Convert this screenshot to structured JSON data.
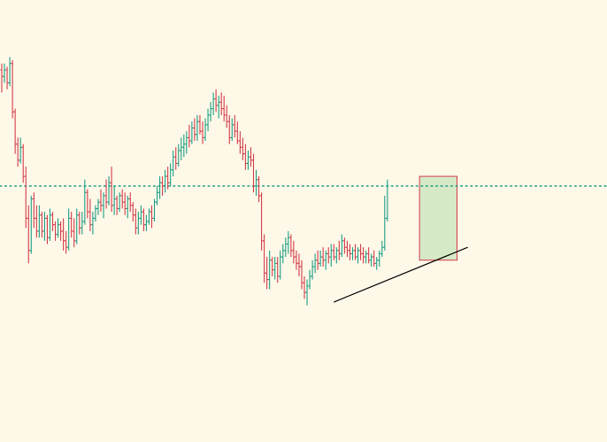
{
  "colors": {
    "background": "#fef8e8",
    "up": "#1b9e85",
    "down": "#d23c4a",
    "level_line": "#1b9e85",
    "trendline": "#000000",
    "box_fill": "#cfe6c0",
    "box_stroke": "#d23c4a"
  },
  "chart_data": {
    "type": "ohlc",
    "xlabel": "",
    "ylabel": "",
    "grid": false,
    "legend": "none",
    "xlim": [
      0,
      226
    ],
    "ylim": [
      0,
      100
    ],
    "candles": [
      {
        "x": 0,
        "o": 86,
        "h": 88,
        "l": 79,
        "c": 84
      },
      {
        "x": 1,
        "o": 84,
        "h": 88,
        "l": 82,
        "c": 86
      },
      {
        "x": 2,
        "o": 86,
        "h": 87,
        "l": 80,
        "c": 82
      },
      {
        "x": 3,
        "o": 82,
        "h": 90,
        "l": 81,
        "c": 88
      },
      {
        "x": 4,
        "o": 88,
        "h": 89,
        "l": 71,
        "c": 73
      },
      {
        "x": 5,
        "o": 73,
        "h": 74,
        "l": 60,
        "c": 63
      },
      {
        "x": 6,
        "o": 63,
        "h": 65,
        "l": 56,
        "c": 58
      },
      {
        "x": 7,
        "o": 58,
        "h": 65,
        "l": 57,
        "c": 62
      },
      {
        "x": 8,
        "o": 62,
        "h": 63,
        "l": 51,
        "c": 53
      },
      {
        "x": 9,
        "o": 53,
        "h": 56,
        "l": 37,
        "c": 40
      },
      {
        "x": 10,
        "o": 40,
        "h": 44,
        "l": 26,
        "c": 30
      },
      {
        "x": 11,
        "o": 30,
        "h": 47,
        "l": 29,
        "c": 46
      },
      {
        "x": 12,
        "o": 46,
        "h": 48,
        "l": 37,
        "c": 40
      },
      {
        "x": 13,
        "o": 40,
        "h": 44,
        "l": 34,
        "c": 36
      },
      {
        "x": 14,
        "o": 36,
        "h": 44,
        "l": 34,
        "c": 41
      },
      {
        "x": 15,
        "o": 41,
        "h": 42,
        "l": 34,
        "c": 36
      },
      {
        "x": 16,
        "o": 36,
        "h": 42,
        "l": 33,
        "c": 40
      },
      {
        "x": 17,
        "o": 40,
        "h": 41,
        "l": 32,
        "c": 34
      },
      {
        "x": 18,
        "o": 34,
        "h": 43,
        "l": 33,
        "c": 41
      },
      {
        "x": 19,
        "o": 41,
        "h": 42,
        "l": 36,
        "c": 38
      },
      {
        "x": 20,
        "o": 38,
        "h": 39,
        "l": 33,
        "c": 35
      },
      {
        "x": 21,
        "o": 35,
        "h": 40,
        "l": 34,
        "c": 38
      },
      {
        "x": 22,
        "o": 38,
        "h": 39,
        "l": 33,
        "c": 36
      },
      {
        "x": 23,
        "o": 36,
        "h": 40,
        "l": 30,
        "c": 33
      },
      {
        "x": 24,
        "o": 33,
        "h": 36,
        "l": 29,
        "c": 31
      },
      {
        "x": 25,
        "o": 31,
        "h": 43,
        "l": 30,
        "c": 40
      },
      {
        "x": 26,
        "o": 40,
        "h": 42,
        "l": 34,
        "c": 36
      },
      {
        "x": 27,
        "o": 36,
        "h": 40,
        "l": 31,
        "c": 33
      },
      {
        "x": 28,
        "o": 33,
        "h": 43,
        "l": 32,
        "c": 41
      },
      {
        "x": 29,
        "o": 41,
        "h": 42,
        "l": 35,
        "c": 37
      },
      {
        "x": 30,
        "o": 37,
        "h": 42,
        "l": 35,
        "c": 39
      },
      {
        "x": 31,
        "o": 39,
        "h": 52,
        "l": 38,
        "c": 48
      },
      {
        "x": 32,
        "o": 48,
        "h": 49,
        "l": 40,
        "c": 42
      },
      {
        "x": 33,
        "o": 42,
        "h": 46,
        "l": 36,
        "c": 38
      },
      {
        "x": 34,
        "o": 38,
        "h": 42,
        "l": 35,
        "c": 40
      },
      {
        "x": 35,
        "o": 40,
        "h": 44,
        "l": 39,
        "c": 43
      },
      {
        "x": 36,
        "o": 43,
        "h": 46,
        "l": 41,
        "c": 45
      },
      {
        "x": 37,
        "o": 45,
        "h": 49,
        "l": 42,
        "c": 44
      },
      {
        "x": 38,
        "o": 44,
        "h": 48,
        "l": 40,
        "c": 47
      },
      {
        "x": 39,
        "o": 47,
        "h": 52,
        "l": 43,
        "c": 45
      },
      {
        "x": 40,
        "o": 45,
        "h": 53,
        "l": 44,
        "c": 51
      },
      {
        "x": 41,
        "o": 51,
        "h": 56,
        "l": 42,
        "c": 44
      },
      {
        "x": 42,
        "o": 44,
        "h": 50,
        "l": 41,
        "c": 46
      },
      {
        "x": 43,
        "o": 46,
        "h": 47,
        "l": 41,
        "c": 43
      },
      {
        "x": 44,
        "o": 43,
        "h": 48,
        "l": 42,
        "c": 47
      },
      {
        "x": 45,
        "o": 47,
        "h": 49,
        "l": 43,
        "c": 45
      },
      {
        "x": 46,
        "o": 45,
        "h": 48,
        "l": 41,
        "c": 43
      },
      {
        "x": 47,
        "o": 43,
        "h": 47,
        "l": 40,
        "c": 46
      },
      {
        "x": 48,
        "o": 46,
        "h": 48,
        "l": 42,
        "c": 44
      },
      {
        "x": 49,
        "o": 44,
        "h": 45,
        "l": 39,
        "c": 41
      },
      {
        "x": 50,
        "o": 41,
        "h": 43,
        "l": 35,
        "c": 37
      },
      {
        "x": 51,
        "o": 37,
        "h": 42,
        "l": 35,
        "c": 40
      },
      {
        "x": 52,
        "o": 40,
        "h": 44,
        "l": 38,
        "c": 42
      },
      {
        "x": 53,
        "o": 42,
        "h": 43,
        "l": 36,
        "c": 38
      },
      {
        "x": 54,
        "o": 38,
        "h": 41,
        "l": 36,
        "c": 39
      },
      {
        "x": 55,
        "o": 39,
        "h": 43,
        "l": 38,
        "c": 42
      },
      {
        "x": 56,
        "o": 42,
        "h": 44,
        "l": 37,
        "c": 40
      },
      {
        "x": 57,
        "o": 40,
        "h": 46,
        "l": 39,
        "c": 45
      },
      {
        "x": 58,
        "o": 45,
        "h": 50,
        "l": 44,
        "c": 48
      },
      {
        "x": 59,
        "o": 48,
        "h": 53,
        "l": 46,
        "c": 51
      },
      {
        "x": 60,
        "o": 51,
        "h": 53,
        "l": 47,
        "c": 50
      },
      {
        "x": 61,
        "o": 50,
        "h": 55,
        "l": 48,
        "c": 53
      },
      {
        "x": 62,
        "o": 53,
        "h": 56,
        "l": 49,
        "c": 51
      },
      {
        "x": 63,
        "o": 51,
        "h": 57,
        "l": 50,
        "c": 55
      },
      {
        "x": 64,
        "o": 55,
        "h": 61,
        "l": 53,
        "c": 59
      },
      {
        "x": 65,
        "o": 59,
        "h": 62,
        "l": 55,
        "c": 57
      },
      {
        "x": 66,
        "o": 57,
        "h": 63,
        "l": 56,
        "c": 61
      },
      {
        "x": 67,
        "o": 61,
        "h": 65,
        "l": 58,
        "c": 62
      },
      {
        "x": 68,
        "o": 62,
        "h": 66,
        "l": 59,
        "c": 63
      },
      {
        "x": 69,
        "o": 63,
        "h": 67,
        "l": 60,
        "c": 65
      },
      {
        "x": 70,
        "o": 65,
        "h": 69,
        "l": 62,
        "c": 64
      },
      {
        "x": 71,
        "o": 64,
        "h": 70,
        "l": 63,
        "c": 68
      },
      {
        "x": 72,
        "o": 68,
        "h": 71,
        "l": 64,
        "c": 66
      },
      {
        "x": 73,
        "o": 66,
        "h": 72,
        "l": 64,
        "c": 70
      },
      {
        "x": 74,
        "o": 70,
        "h": 72,
        "l": 66,
        "c": 67
      },
      {
        "x": 75,
        "o": 67,
        "h": 70,
        "l": 63,
        "c": 65
      },
      {
        "x": 76,
        "o": 65,
        "h": 71,
        "l": 64,
        "c": 69
      },
      {
        "x": 77,
        "o": 69,
        "h": 74,
        "l": 67,
        "c": 72
      },
      {
        "x": 78,
        "o": 72,
        "h": 76,
        "l": 70,
        "c": 74
      },
      {
        "x": 79,
        "o": 74,
        "h": 79,
        "l": 72,
        "c": 77
      },
      {
        "x": 80,
        "o": 77,
        "h": 80,
        "l": 73,
        "c": 75
      },
      {
        "x": 81,
        "o": 75,
        "h": 78,
        "l": 71,
        "c": 76
      },
      {
        "x": 82,
        "o": 76,
        "h": 79,
        "l": 72,
        "c": 74
      },
      {
        "x": 83,
        "o": 74,
        "h": 78,
        "l": 70,
        "c": 72
      },
      {
        "x": 84,
        "o": 72,
        "h": 75,
        "l": 68,
        "c": 70
      },
      {
        "x": 85,
        "o": 70,
        "h": 72,
        "l": 63,
        "c": 65
      },
      {
        "x": 86,
        "o": 65,
        "h": 71,
        "l": 64,
        "c": 69
      },
      {
        "x": 87,
        "o": 69,
        "h": 72,
        "l": 65,
        "c": 67
      },
      {
        "x": 88,
        "o": 67,
        "h": 70,
        "l": 63,
        "c": 64
      },
      {
        "x": 89,
        "o": 64,
        "h": 67,
        "l": 60,
        "c": 62
      },
      {
        "x": 90,
        "o": 62,
        "h": 65,
        "l": 58,
        "c": 60
      },
      {
        "x": 91,
        "o": 60,
        "h": 63,
        "l": 55,
        "c": 57
      },
      {
        "x": 92,
        "o": 57,
        "h": 61,
        "l": 55,
        "c": 59
      },
      {
        "x": 93,
        "o": 59,
        "h": 62,
        "l": 56,
        "c": 58
      },
      {
        "x": 94,
        "o": 58,
        "h": 60,
        "l": 48,
        "c": 50
      },
      {
        "x": 95,
        "o": 50,
        "h": 55,
        "l": 47,
        "c": 52
      },
      {
        "x": 96,
        "o": 52,
        "h": 53,
        "l": 45,
        "c": 47
      },
      {
        "x": 97,
        "o": 47,
        "h": 48,
        "l": 30,
        "c": 33
      },
      {
        "x": 98,
        "o": 33,
        "h": 35,
        "l": 20,
        "c": 23
      },
      {
        "x": 99,
        "o": 23,
        "h": 28,
        "l": 18,
        "c": 21
      },
      {
        "x": 100,
        "o": 21,
        "h": 30,
        "l": 18,
        "c": 27
      },
      {
        "x": 101,
        "o": 27,
        "h": 28,
        "l": 22,
        "c": 24
      },
      {
        "x": 102,
        "o": 24,
        "h": 28,
        "l": 21,
        "c": 26
      },
      {
        "x": 103,
        "o": 26,
        "h": 28,
        "l": 20,
        "c": 22
      },
      {
        "x": 104,
        "o": 22,
        "h": 30,
        "l": 21,
        "c": 28
      },
      {
        "x": 105,
        "o": 28,
        "h": 32,
        "l": 26,
        "c": 30
      },
      {
        "x": 106,
        "o": 30,
        "h": 34,
        "l": 28,
        "c": 32
      },
      {
        "x": 107,
        "o": 32,
        "h": 36,
        "l": 29,
        "c": 34
      },
      {
        "x": 108,
        "o": 34,
        "h": 35,
        "l": 28,
        "c": 30
      },
      {
        "x": 109,
        "o": 30,
        "h": 33,
        "l": 26,
        "c": 28
      },
      {
        "x": 110,
        "o": 28,
        "h": 30,
        "l": 24,
        "c": 26
      },
      {
        "x": 111,
        "o": 26,
        "h": 29,
        "l": 22,
        "c": 25
      },
      {
        "x": 112,
        "o": 25,
        "h": 27,
        "l": 18,
        "c": 20
      },
      {
        "x": 113,
        "o": 20,
        "h": 22,
        "l": 15,
        "c": 17
      },
      {
        "x": 114,
        "o": 17,
        "h": 21,
        "l": 13,
        "c": 19
      },
      {
        "x": 115,
        "o": 19,
        "h": 24,
        "l": 18,
        "c": 22
      },
      {
        "x": 116,
        "o": 22,
        "h": 27,
        "l": 21,
        "c": 25
      },
      {
        "x": 117,
        "o": 25,
        "h": 29,
        "l": 23,
        "c": 27
      },
      {
        "x": 118,
        "o": 27,
        "h": 30,
        "l": 24,
        "c": 26
      },
      {
        "x": 119,
        "o": 26,
        "h": 30,
        "l": 25,
        "c": 28
      },
      {
        "x": 120,
        "o": 28,
        "h": 31,
        "l": 25,
        "c": 27
      },
      {
        "x": 121,
        "o": 27,
        "h": 30,
        "l": 24,
        "c": 29
      },
      {
        "x": 122,
        "o": 29,
        "h": 31,
        "l": 26,
        "c": 28
      },
      {
        "x": 123,
        "o": 28,
        "h": 32,
        "l": 25,
        "c": 30
      },
      {
        "x": 124,
        "o": 30,
        "h": 32,
        "l": 27,
        "c": 28
      },
      {
        "x": 125,
        "o": 28,
        "h": 31,
        "l": 26,
        "c": 30
      },
      {
        "x": 126,
        "o": 30,
        "h": 33,
        "l": 27,
        "c": 29
      },
      {
        "x": 127,
        "o": 29,
        "h": 35,
        "l": 28,
        "c": 33
      },
      {
        "x": 128,
        "o": 33,
        "h": 34,
        "l": 29,
        "c": 31
      },
      {
        "x": 129,
        "o": 31,
        "h": 33,
        "l": 28,
        "c": 30
      },
      {
        "x": 130,
        "o": 30,
        "h": 32,
        "l": 27,
        "c": 29
      },
      {
        "x": 131,
        "o": 29,
        "h": 31,
        "l": 27,
        "c": 30
      },
      {
        "x": 132,
        "o": 30,
        "h": 32,
        "l": 27,
        "c": 28
      },
      {
        "x": 133,
        "o": 28,
        "h": 31,
        "l": 26,
        "c": 30
      },
      {
        "x": 134,
        "o": 30,
        "h": 32,
        "l": 27,
        "c": 29
      },
      {
        "x": 135,
        "o": 29,
        "h": 31,
        "l": 26,
        "c": 28
      },
      {
        "x": 136,
        "o": 28,
        "h": 30,
        "l": 26,
        "c": 29
      },
      {
        "x": 137,
        "o": 29,
        "h": 31,
        "l": 26,
        "c": 27
      },
      {
        "x": 138,
        "o": 27,
        "h": 29,
        "l": 25,
        "c": 28
      },
      {
        "x": 139,
        "o": 28,
        "h": 30,
        "l": 25,
        "c": 26
      },
      {
        "x": 140,
        "o": 26,
        "h": 28,
        "l": 24,
        "c": 27
      },
      {
        "x": 141,
        "o": 27,
        "h": 30,
        "l": 25,
        "c": 29
      },
      {
        "x": 142,
        "o": 29,
        "h": 33,
        "l": 28,
        "c": 31
      },
      {
        "x": 143,
        "o": 31,
        "h": 47,
        "l": 30,
        "c": 40
      },
      {
        "x": 144,
        "o": 40,
        "h": 52,
        "l": 39,
        "c": 50
      }
    ],
    "annotations": {
      "horizontal_level": {
        "y": 50
      },
      "trendline": {
        "x1": 124,
        "y1": 14,
        "x2": 174,
        "y2": 31
      },
      "highlight_box": {
        "x1": 156,
        "x2": 170,
        "y1": 27,
        "y2": 53
      }
    }
  }
}
